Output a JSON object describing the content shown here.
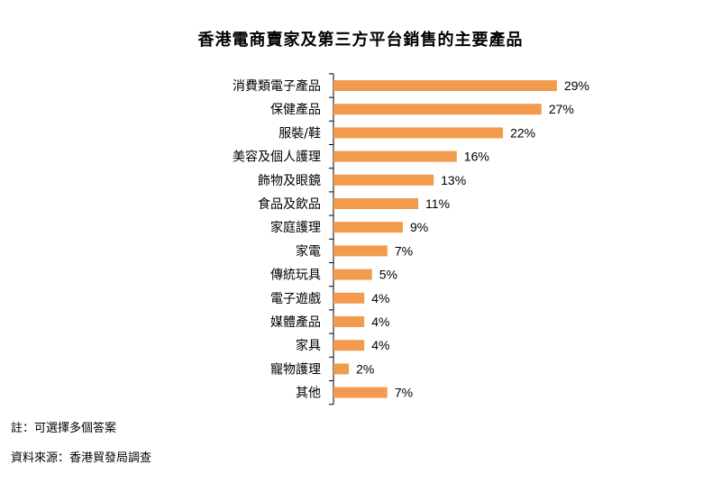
{
  "title": "香港電商賣家及第三方平台銷售的主要產品",
  "chart_data": {
    "type": "bar",
    "orientation": "horizontal",
    "title": "香港電商賣家及第三方平台銷售的主要產品",
    "categories": [
      "消費類電子產品",
      "保健產品",
      "服裝/鞋",
      "美容及個人護理",
      "飾物及眼鏡",
      "食品及飲品",
      "家庭護理",
      "家電",
      "傳統玩具",
      "電子遊戲",
      "媒體產品",
      "家具",
      "寵物護理",
      "其他"
    ],
    "values": [
      29,
      27,
      22,
      16,
      13,
      11,
      9,
      7,
      5,
      4,
      4,
      4,
      2,
      7
    ],
    "value_labels": [
      "29%",
      "27%",
      "22%",
      "16%",
      "13%",
      "11%",
      "9%",
      "7%",
      "5%",
      "4%",
      "4%",
      "4%",
      "2%",
      "7%"
    ],
    "unit": "%",
    "xlim": [
      0,
      30
    ],
    "bar_color": "#F29B4E",
    "grid": false,
    "legend": "none"
  },
  "notes": {
    "note": "註：可選擇多個答案",
    "source": "資料來源：香港貿發局調查"
  }
}
